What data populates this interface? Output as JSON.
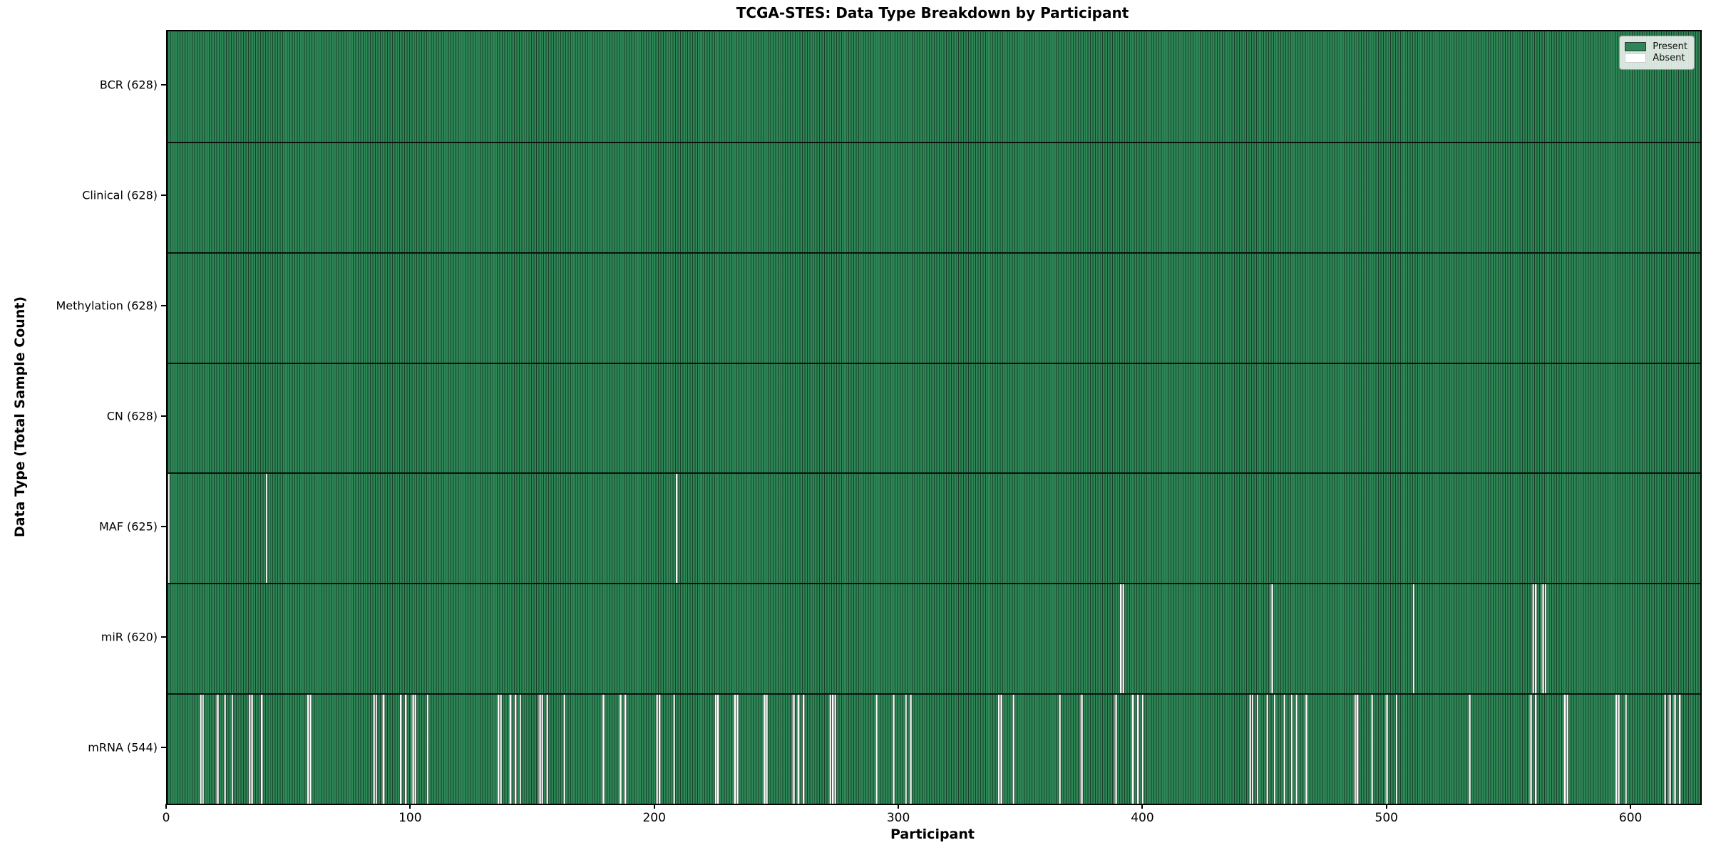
{
  "figure": {
    "title": "TCGA-STES: Data Type Breakdown by Participant",
    "xlabel": "Participant",
    "ylabel": "Data Type (Total Sample Count)"
  },
  "legend": {
    "items": [
      {
        "label": "Present",
        "color": "#2e8657"
      },
      {
        "label": "Absent",
        "color": "#ffffff"
      }
    ]
  },
  "chart_data": {
    "type": "heatmap",
    "title": "TCGA-STES: Data Type Breakdown by Participant",
    "xlabel": "Participant",
    "ylabel": "Data Type (Total Sample Count)",
    "n_participants": 628,
    "x_ticks": [
      0,
      100,
      200,
      300,
      400,
      500,
      600
    ],
    "legend_position": "upper right",
    "colors": {
      "present": "#2e8657",
      "absent": "#ffffff",
      "cell_edge": "#17301f"
    },
    "rows": [
      {
        "name": "BCR",
        "total": 628,
        "label": "BCR (628)",
        "absent": []
      },
      {
        "name": "Clinical",
        "total": 628,
        "label": "Clinical (628)",
        "absent": []
      },
      {
        "name": "Methylation",
        "total": 628,
        "label": "Methylation (628)",
        "absent": []
      },
      {
        "name": "CN",
        "total": 628,
        "label": "CN (628)",
        "absent": []
      },
      {
        "name": "MAF",
        "total": 625,
        "label": "MAF (625)",
        "absent": [
          0,
          40,
          208
        ]
      },
      {
        "name": "miR",
        "total": 620,
        "label": "miR (620)",
        "absent": [
          390,
          391,
          452,
          510,
          559,
          560,
          563,
          564
        ]
      },
      {
        "name": "mRNA",
        "total": 544,
        "label": "mRNA (544)",
        "absent": [
          13,
          14,
          20,
          23,
          26,
          33,
          34,
          38,
          57,
          58,
          84,
          85,
          88,
          95,
          97,
          100,
          101,
          106,
          135,
          136,
          140,
          142,
          144,
          152,
          153,
          155,
          162,
          178,
          185,
          187,
          200,
          201,
          207,
          224,
          225,
          232,
          233,
          244,
          245,
          256,
          258,
          260,
          271,
          272,
          273,
          290,
          297,
          302,
          304,
          340,
          341,
          346,
          365,
          374,
          388,
          395,
          397,
          399,
          443,
          444,
          446,
          450,
          453,
          457,
          460,
          462,
          466,
          486,
          487,
          493,
          499,
          503,
          533,
          558,
          560,
          572,
          573,
          593,
          594,
          597,
          613,
          615,
          617,
          619
        ]
      }
    ]
  }
}
